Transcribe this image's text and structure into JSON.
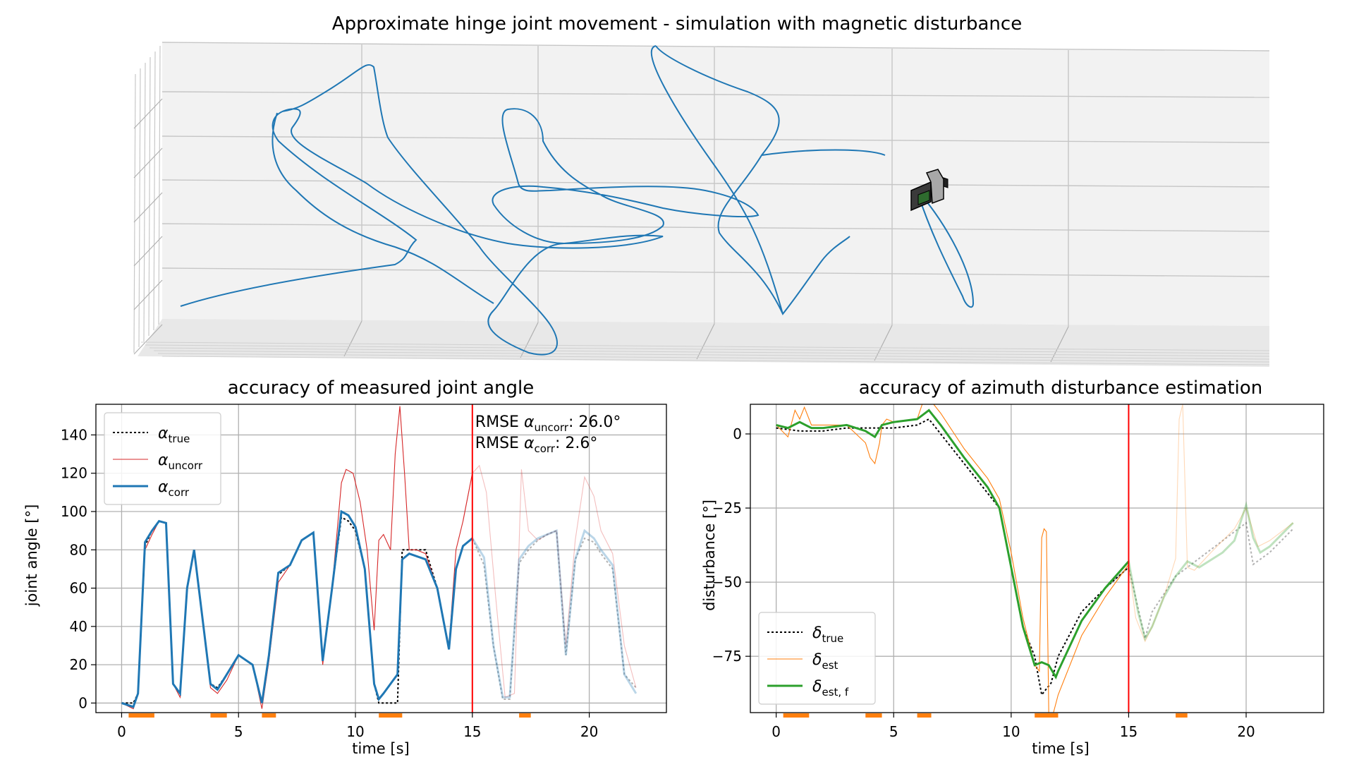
{
  "figure_title": "Approximate hinge joint movement - simulation with magnetic disturbance",
  "colors": {
    "trajectory": "#1f77b4",
    "true": "#000000",
    "uncorr": "#d62728",
    "corr": "#1f77b4",
    "est": "#ff7f0e",
    "est_f": "#2ca02c",
    "marker_line": "#ff0000",
    "rest_bars": "#ff7f0e",
    "grid": "#b0b0b0",
    "pane": "#f2f2f2"
  },
  "chart_data": [
    {
      "type": "line",
      "id": "joint-angle",
      "title": "accuracy of measured joint angle",
      "xlabel": "time [s]",
      "ylabel": "joint angle [°]",
      "xlim": [
        -1.1,
        23.3
      ],
      "ylim": [
        -5,
        156
      ],
      "xticks": [
        0,
        5,
        10,
        15,
        20
      ],
      "yticks": [
        0,
        20,
        40,
        60,
        80,
        100,
        120,
        140
      ],
      "grid": true,
      "legend_position": "top-left",
      "vline_x": 15,
      "rest_intervals": [
        [
          0.3,
          1.4
        ],
        [
          3.8,
          4.5
        ],
        [
          6.0,
          6.6
        ],
        [
          11.0,
          12.0
        ],
        [
          17.0,
          17.5
        ]
      ],
      "annotation": {
        "line1_prefix": "RMSE ",
        "line1_symbol": "α",
        "line1_sub": "uncorr",
        "line1_value": ": 26.0°",
        "line2_prefix": "RMSE ",
        "line2_symbol": "α",
        "line2_sub": "corr",
        "line2_value": ":    2.6°"
      },
      "series": [
        {
          "key": "true",
          "symbol": "α",
          "sub": "true",
          "style": "dotted",
          "x": [
            0,
            0.5,
            0.7,
            1.0,
            1.3,
            1.6,
            1.9,
            2.2,
            2.5,
            2.8,
            3.1,
            3.5,
            3.8,
            4.1,
            4.5,
            5.0,
            5.6,
            6.0,
            6.3,
            6.7,
            7.2,
            7.7,
            8.2,
            8.6,
            9.0,
            9.4,
            9.7,
            10.0,
            10.4,
            10.8,
            11.0,
            11.5,
            11.8,
            12.0,
            12.3,
            13.0,
            13.5,
            14.0,
            14.3,
            14.6,
            15.0,
            15.5,
            15.9,
            16.3,
            16.6,
            17.0,
            17.4,
            17.8,
            18.2,
            18.6,
            19.0,
            19.4,
            19.8,
            20.2,
            20.5,
            21.0,
            21.5,
            22.0
          ],
          "y": [
            0,
            0,
            5,
            82,
            90,
            95,
            94,
            10,
            5,
            60,
            80,
            40,
            10,
            8,
            15,
            25,
            20,
            0,
            25,
            67,
            72,
            85,
            89,
            22,
            60,
            97,
            95,
            90,
            70,
            10,
            0,
            0,
            0,
            80,
            80,
            80,
            60,
            28,
            70,
            82,
            86,
            72,
            30,
            2,
            2,
            73,
            80,
            85,
            88,
            90,
            25,
            75,
            86,
            84,
            78,
            70,
            15,
            8
          ]
        },
        {
          "key": "uncorr",
          "symbol": "α",
          "sub": "uncorr",
          "style": "thin",
          "x": [
            0,
            0.5,
            0.7,
            1.0,
            1.3,
            1.6,
            1.9,
            2.2,
            2.5,
            2.8,
            3.1,
            3.5,
            3.8,
            4.1,
            4.5,
            5.0,
            5.6,
            6.0,
            6.3,
            6.7,
            7.2,
            7.7,
            8.2,
            8.6,
            9.0,
            9.4,
            9.6,
            9.9,
            10.2,
            10.5,
            10.8,
            11.0,
            11.2,
            11.5,
            11.7,
            11.9,
            12.1,
            12.3,
            12.6,
            13.0,
            13.5,
            14.0,
            14.3,
            14.6,
            15.0,
            15.3,
            15.6,
            16.0,
            16.4,
            16.8,
            17.1,
            17.4,
            17.8,
            18.2,
            18.6,
            19.0,
            19.4,
            19.8,
            20.2,
            20.5,
            21.0,
            21.5,
            22.0
          ],
          "y": [
            0,
            -3,
            5,
            80,
            88,
            95,
            94,
            10,
            3,
            60,
            80,
            40,
            8,
            5,
            12,
            25,
            20,
            -3,
            22,
            63,
            72,
            85,
            89,
            20,
            60,
            115,
            122,
            120,
            105,
            80,
            38,
            85,
            88,
            80,
            130,
            155,
            120,
            80,
            80,
            78,
            60,
            30,
            80,
            95,
            120,
            124,
            110,
            55,
            3,
            5,
            122,
            90,
            85,
            88,
            90,
            30,
            85,
            118,
            108,
            90,
            78,
            30,
            8
          ]
        },
        {
          "key": "corr",
          "symbol": "α",
          "sub": "corr",
          "style": "thick",
          "x": [
            0,
            0.5,
            0.7,
            1.0,
            1.3,
            1.6,
            1.9,
            2.2,
            2.5,
            2.8,
            3.1,
            3.5,
            3.8,
            4.1,
            4.5,
            5.0,
            5.6,
            6.0,
            6.3,
            6.7,
            7.2,
            7.7,
            8.2,
            8.6,
            9.0,
            9.4,
            9.7,
            10.0,
            10.4,
            10.8,
            11.0,
            11.2,
            11.5,
            11.8,
            12.0,
            12.3,
            13.0,
            13.5,
            14.0,
            14.3,
            14.6,
            15.0,
            15.5,
            15.9,
            16.3,
            16.6,
            17.0,
            17.4,
            17.8,
            18.2,
            18.6,
            19.0,
            19.4,
            19.8,
            20.2,
            20.5,
            21.0,
            21.5,
            22.0
          ],
          "y": [
            0,
            -2,
            5,
            84,
            90,
            95,
            94,
            10,
            5,
            60,
            80,
            40,
            10,
            7,
            15,
            25,
            20,
            0,
            25,
            68,
            72,
            85,
            89,
            22,
            60,
            100,
            98,
            92,
            70,
            10,
            2,
            5,
            10,
            15,
            75,
            78,
            75,
            60,
            28,
            70,
            82,
            86,
            76,
            30,
            3,
            3,
            75,
            82,
            86,
            88,
            90,
            25,
            75,
            90,
            86,
            80,
            72,
            15,
            5
          ]
        }
      ]
    },
    {
      "type": "line",
      "id": "azimuth-disturbance",
      "title": "accuracy of azimuth disturbance estimation",
      "xlabel": "time [s]",
      "ylabel": "disturbance [°]",
      "xlim": [
        -1.1,
        23.3
      ],
      "ylim": [
        -94,
        10
      ],
      "xticks": [
        0,
        5,
        10,
        15,
        20
      ],
      "yticks": [
        0,
        -25,
        -50,
        -75
      ],
      "ytick_labels": [
        "0",
        "−25",
        "−50",
        "−75"
      ],
      "grid": true,
      "legend_position": "bottom-left",
      "vline_x": 15,
      "rest_intervals": [
        [
          0.3,
          1.4
        ],
        [
          3.8,
          4.5
        ],
        [
          6.0,
          6.6
        ],
        [
          11.0,
          12.0
        ],
        [
          17.0,
          17.5
        ]
      ],
      "series": [
        {
          "key": "true",
          "symbol": "δ",
          "sub": "true",
          "style": "dotted",
          "x": [
            0,
            1,
            2,
            3,
            4,
            5,
            6,
            6.5,
            7,
            8,
            9,
            9.5,
            10,
            10.5,
            11,
            11.3,
            11.7,
            12,
            13,
            14,
            15,
            15.7,
            16,
            17,
            18,
            19,
            20,
            20.3,
            21,
            22
          ],
          "y": [
            2,
            1,
            1,
            2,
            2,
            2,
            3,
            5,
            0,
            -10,
            -20,
            -25,
            -45,
            -65,
            -75,
            -88,
            -84,
            -75,
            -60,
            -52,
            -45,
            -69,
            -60,
            -48,
            -42,
            -36,
            -30,
            -44,
            -40,
            -32
          ]
        },
        {
          "key": "est",
          "symbol": "δ",
          "sub": "est",
          "style": "thin",
          "x": [
            0,
            0.5,
            0.8,
            1.0,
            1.2,
            1.5,
            2.0,
            3.0,
            3.8,
            4.0,
            4.2,
            4.4,
            4.5,
            4.7,
            5.0,
            6.0,
            6.3,
            6.5,
            6.7,
            7.0,
            8.0,
            9.0,
            9.5,
            10.0,
            10.5,
            11.0,
            11.2,
            11.3,
            11.4,
            11.5,
            11.6,
            11.8,
            12.0,
            13.0,
            14.0,
            15.0,
            15.3,
            15.7,
            16.0,
            16.5,
            17.0,
            17.15,
            17.3,
            17.5,
            17.8,
            18.5,
            19.5,
            20.0,
            20.5,
            21.0,
            22.0
          ],
          "y": [
            3,
            -1,
            8,
            5,
            9,
            3,
            3,
            3,
            -3,
            -8,
            -10,
            -3,
            3,
            5,
            4,
            5,
            12,
            15,
            10,
            7,
            -5,
            -15,
            -22,
            -40,
            -62,
            -78,
            -80,
            -35,
            -32,
            -33,
            -94,
            -94,
            -88,
            -68,
            -55,
            -44,
            -62,
            -70,
            -65,
            -55,
            -42,
            5,
            10,
            -45,
            -46,
            -40,
            -32,
            -25,
            -38,
            -36,
            -30
          ]
        },
        {
          "key": "est_f",
          "symbol": "δ",
          "sub": "est, f",
          "style": "thick",
          "x": [
            0,
            0.5,
            1.0,
            1.5,
            2.0,
            3.0,
            3.8,
            4.2,
            4.5,
            5.0,
            6.0,
            6.5,
            7.0,
            8.0,
            9.0,
            9.5,
            10.0,
            10.5,
            11.0,
            11.3,
            11.6,
            11.9,
            12.0,
            13.0,
            14.0,
            15.0,
            15.4,
            15.7,
            16.0,
            16.5,
            17.0,
            17.5,
            18.0,
            19.0,
            19.5,
            20.0,
            20.3,
            20.6,
            21.0,
            22.0
          ],
          "y": [
            3,
            2,
            4,
            2,
            2,
            3,
            1,
            -1,
            3,
            4,
            5,
            8,
            3,
            -8,
            -18,
            -25,
            -45,
            -65,
            -78,
            -77,
            -78,
            -82,
            -80,
            -63,
            -52,
            -43,
            -60,
            -69,
            -65,
            -55,
            -48,
            -43,
            -45,
            -40,
            -36,
            -24,
            -35,
            -40,
            -38,
            -30
          ]
        }
      ]
    }
  ]
}
